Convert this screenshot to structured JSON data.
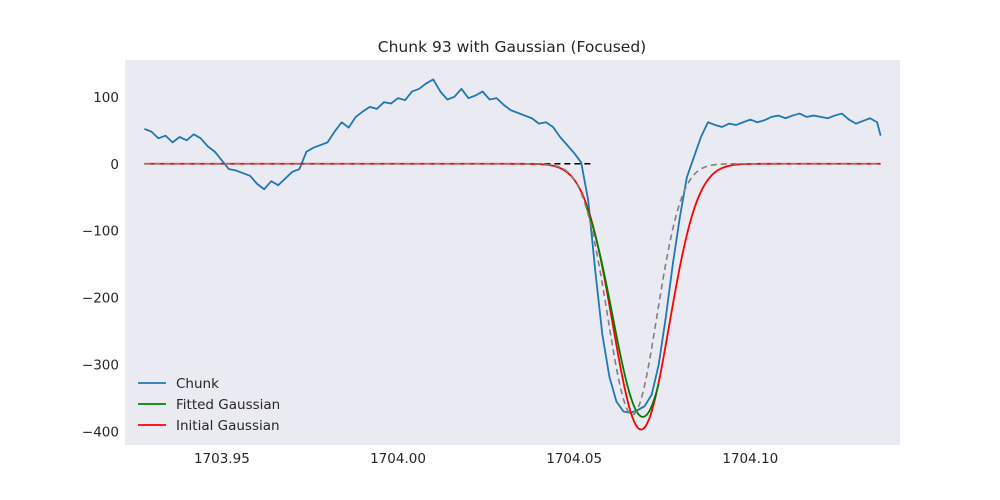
{
  "chart_data": {
    "type": "line",
    "title": "Chunk 93 with Gaussian (Focused)",
    "xlabel": "",
    "ylabel": "",
    "xlim": [
      1703.9225,
      1704.1425
    ],
    "ylim": [
      -420,
      155
    ],
    "xticks": [
      1703.95,
      1704.0,
      1704.05,
      1704.1
    ],
    "xtick_labels": [
      "1703.95",
      "1704.00",
      "1704.05",
      "1704.10"
    ],
    "yticks": [
      100,
      0,
      -100,
      -200,
      -300,
      -400
    ],
    "ytick_labels": [
      "100",
      "0",
      "−100",
      "−200",
      "−300",
      "−400"
    ],
    "grid": false,
    "legend": "lower-left",
    "background": "#eaeaf2",
    "series": [
      {
        "name": "Chunk",
        "color": "#1f77b4",
        "style": "solid",
        "x": [
          1703.928,
          1703.93,
          1703.932,
          1703.934,
          1703.936,
          1703.938,
          1703.94,
          1703.942,
          1703.944,
          1703.946,
          1703.948,
          1703.95,
          1703.952,
          1703.954,
          1703.956,
          1703.958,
          1703.96,
          1703.962,
          1703.964,
          1703.966,
          1703.968,
          1703.97,
          1703.972,
          1703.974,
          1703.976,
          1703.978,
          1703.98,
          1703.982,
          1703.984,
          1703.986,
          1703.988,
          1703.99,
          1703.992,
          1703.994,
          1703.996,
          1703.998,
          1704.0,
          1704.002,
          1704.004,
          1704.006,
          1704.008,
          1704.01,
          1704.012,
          1704.014,
          1704.016,
          1704.018,
          1704.02,
          1704.022,
          1704.024,
          1704.026,
          1704.028,
          1704.03,
          1704.032,
          1704.034,
          1704.036,
          1704.038,
          1704.04,
          1704.042,
          1704.044,
          1704.046,
          1704.048,
          1704.05,
          1704.052,
          1704.054,
          1704.056,
          1704.058,
          1704.06,
          1704.062,
          1704.064,
          1704.066,
          1704.068,
          1704.07,
          1704.072,
          1704.074,
          1704.076,
          1704.078,
          1704.08,
          1704.082,
          1704.084,
          1704.086,
          1704.088,
          1704.09,
          1704.092,
          1704.094,
          1704.096,
          1704.098,
          1704.1,
          1704.102,
          1704.104,
          1704.106,
          1704.108,
          1704.11,
          1704.112,
          1704.114,
          1704.116,
          1704.118,
          1704.12,
          1704.122,
          1704.124,
          1704.126,
          1704.128,
          1704.13,
          1704.132,
          1704.134,
          1704.136,
          1704.137
        ],
        "y": [
          52,
          48,
          38,
          42,
          32,
          40,
          35,
          44,
          38,
          26,
          18,
          5,
          -8,
          -10,
          -14,
          -18,
          -30,
          -38,
          -26,
          -32,
          -22,
          -12,
          -8,
          18,
          24,
          28,
          32,
          48,
          62,
          54,
          70,
          78,
          85,
          82,
          92,
          90,
          98,
          95,
          108,
          112,
          120,
          126,
          108,
          96,
          100,
          112,
          98,
          102,
          108,
          96,
          98,
          88,
          80,
          76,
          72,
          68,
          60,
          62,
          55,
          40,
          28,
          16,
          2,
          -55,
          -160,
          -255,
          -318,
          -355,
          -370,
          -372,
          -368,
          -362,
          -345,
          -300,
          -230,
          -150,
          -80,
          -20,
          10,
          40,
          62,
          58,
          55,
          60,
          58,
          62,
          66,
          62,
          65,
          70,
          72,
          68,
          72,
          75,
          70,
          72,
          70,
          68,
          72,
          75,
          66,
          60,
          64,
          68,
          62,
          42
        ],
        "values_rounded": true
      },
      {
        "name": "Fitted Gaussian",
        "color": "#008000",
        "style": "solid",
        "gaussian": {
          "amplitude": -378,
          "center": 1704.0695,
          "sigma": 0.0085
        },
        "segment": [
          1704.053,
          1704.074
        ],
        "note_segment": "visible green segment of fitted curve"
      },
      {
        "name": "Initial Gaussian",
        "color": "#ff0000",
        "style": "solid",
        "gaussian": {
          "amplitude": -397,
          "center": 1704.069,
          "sigma": 0.008
        },
        "x_range": [
          1703.928,
          1704.137
        ]
      },
      {
        "name": "",
        "color": "#808080",
        "style": "dashed",
        "gaussian": {
          "amplitude": -375,
          "center": 1704.0665,
          "sigma": 0.007
        },
        "x_range": [
          1703.928,
          1704.137
        ]
      },
      {
        "name": "",
        "color": "#000000",
        "style": "dashed",
        "baseline": 0,
        "x_range": [
          1703.928,
          1704.055
        ]
      }
    ]
  },
  "legend_items": [
    {
      "label": "Chunk",
      "color": "#1f77b4"
    },
    {
      "label": "Fitted Gaussian",
      "color": "#008000"
    },
    {
      "label": "Initial Gaussian",
      "color": "#ff0000"
    }
  ]
}
